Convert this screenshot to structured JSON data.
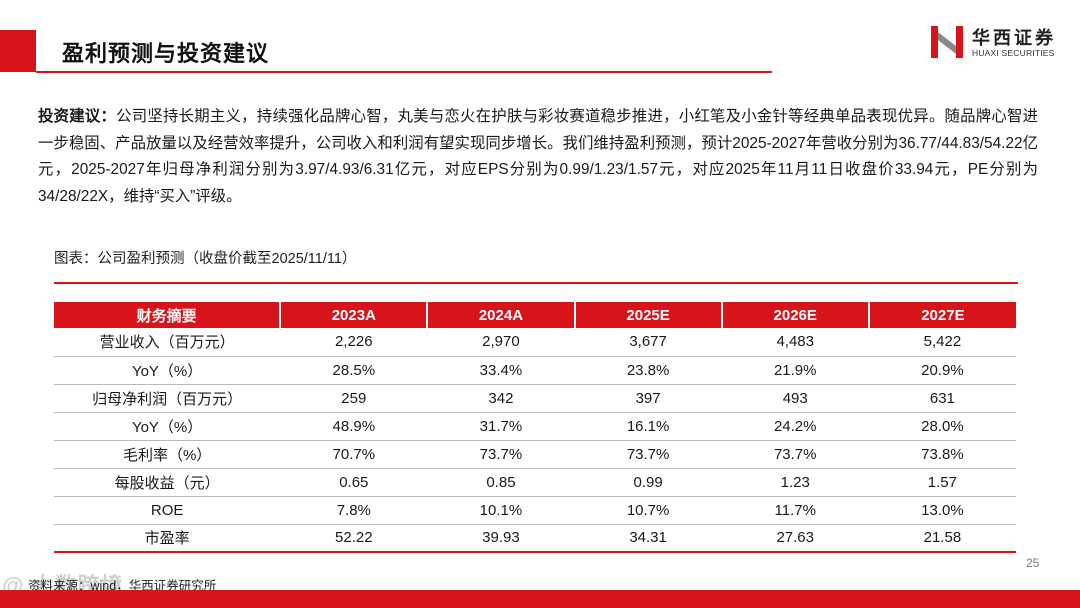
{
  "header": {
    "title": "盈利预测与投资建议"
  },
  "logo": {
    "name_cn": "华西证券",
    "name_en": "HUAXI SECURITIES",
    "brand_color": "#d7141a"
  },
  "paragraph": {
    "lead": "投资建议：",
    "text": "公司坚持长期主义，持续强化品牌心智，丸美与恋火在护肤与彩妆赛道稳步推进，小红笔及小金针等经典单品表现优异。随品牌心智进一步稳固、产品放量以及经营效率提升，公司收入和利润有望实现同步增长。我们维持盈利预测，预计2025-2027年营收分别为36.77/44.83/54.22亿元，2025-2027年归母净利润分别为3.97/4.93/6.31亿元，对应EPS分别为0.99/1.23/1.57元，对应2025年11月11日收盘价33.94元，PE分别为34/28/22X，维持“买入”评级。"
  },
  "table": {
    "caption": "图表：公司盈利预测（收盘价截至2025/11/11）",
    "headers": [
      "财务摘要",
      "2023A",
      "2024A",
      "2025E",
      "2026E",
      "2027E"
    ],
    "rows": [
      [
        "营业收入（百万元）",
        "2,226",
        "2,970",
        "3,677",
        "4,483",
        "5,422"
      ],
      [
        "YoY（%）",
        "28.5%",
        "33.4%",
        "23.8%",
        "21.9%",
        "20.9%"
      ],
      [
        "归母净利润（百万元）",
        "259",
        "342",
        "397",
        "493",
        "631"
      ],
      [
        "YoY（%）",
        "48.9%",
        "31.7%",
        "16.1%",
        "24.2%",
        "28.0%"
      ],
      [
        "毛利率（%）",
        "70.7%",
        "73.7%",
        "73.7%",
        "73.7%",
        "73.8%"
      ],
      [
        "每股收益（元）",
        "0.65",
        "0.85",
        "0.99",
        "1.23",
        "1.57"
      ],
      [
        "ROE",
        "7.8%",
        "10.1%",
        "10.7%",
        "11.7%",
        "13.0%"
      ],
      [
        "市盈率",
        "52.22",
        "39.93",
        "34.31",
        "27.63",
        "21.58"
      ]
    ]
  },
  "footer": {
    "source": "资料来源：wind，华西证券研究所",
    "page_number": "25",
    "watermark": "@ 大数跨境"
  }
}
